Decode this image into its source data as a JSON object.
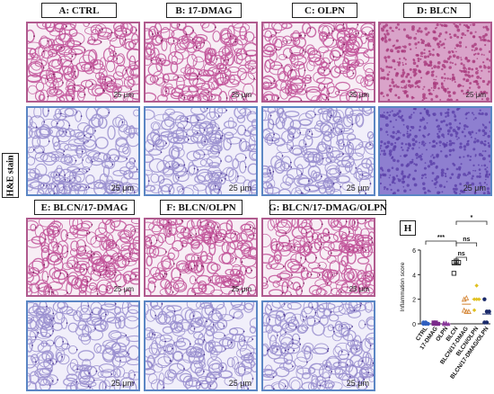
{
  "labels": {
    "a": "A: CTRL",
    "b": "B: 17-DMAG",
    "c": "C: OLPN",
    "d": "D: BLCN",
    "e": "E: BLCN/17-DMAG",
    "f": "F: BLCN/OLPN",
    "g": "G: BLCN/17-DMAG/OLPN",
    "h": "H",
    "side": "H&E stain"
  },
  "scale_bar": "25 μm",
  "colors": {
    "top_frame": "#b05a8e",
    "bottom_frame": "#5b86c4",
    "tissue_top": "#c2559a",
    "tissue_bottom": "#9a8fcf"
  },
  "chart_data": {
    "type": "scatter",
    "ylabel": "Inflammation score",
    "ylim": [
      0,
      6
    ],
    "yticks": [
      "0",
      "2",
      "4",
      "6"
    ],
    "categories": [
      "CTRL",
      "17-DMAG",
      "OLPN",
      "BLCN",
      "BLCN/17-DMAG",
      "BLCN/OLPN",
      "BLCN/17-DMAG/OLPN"
    ],
    "series": [
      {
        "category": "CTRL",
        "values": [
          0,
          0,
          0,
          0,
          0
        ],
        "mean": 0,
        "color": "#2f5fbf",
        "marker": "circle"
      },
      {
        "category": "17-DMAG",
        "values": [
          0,
          0,
          0,
          0,
          0
        ],
        "mean": 0,
        "color": "#7a2a8a",
        "marker": "square"
      },
      {
        "category": "OLPN",
        "values": [
          0,
          0,
          0,
          0,
          0
        ],
        "mean": 0,
        "color": "#8a3a9a",
        "marker": "triangle"
      },
      {
        "category": "BLCN",
        "values": [
          5,
          5,
          5,
          4,
          5
        ],
        "mean": 4.8,
        "color": "#222222",
        "marker": "open-square"
      },
      {
        "category": "BLCN/17-DMAG",
        "values": [
          2,
          1,
          1,
          1,
          2
        ],
        "mean": 1.6,
        "color": "#d68a3c",
        "marker": "open-triangle"
      },
      {
        "category": "BLCN/OLPN",
        "values": [
          2,
          2,
          2,
          1,
          3
        ],
        "mean": 2,
        "color": "#e0c020",
        "marker": "diamond"
      },
      {
        "category": "BLCN/17-DMAG/OLPN",
        "values": [
          2,
          1,
          1,
          0,
          0
        ],
        "mean": 0.8,
        "color": "#1a2a6a",
        "marker": "circle"
      }
    ],
    "significance": [
      "***",
      "ns",
      "ns",
      "*"
    ]
  }
}
